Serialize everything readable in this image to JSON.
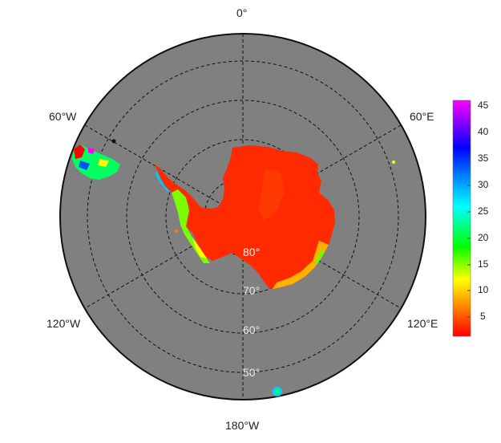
{
  "map": {
    "projection": "south-polar-stereographic",
    "background_ocean_color": "#808080",
    "land_fill_color": "#ff2a00",
    "longitude_labels": {
      "top": "0°",
      "upper_left": "60°W",
      "upper_right": "60°E",
      "lower_left": "120°W",
      "lower_right": "120°E",
      "bottom": "180°W"
    },
    "latitude_labels": [
      "80°",
      "70°",
      "60°",
      "50°"
    ]
  },
  "colorbar": {
    "ticks": [
      "45",
      "40",
      "35",
      "30",
      "25",
      "20",
      "15",
      "10",
      "5"
    ],
    "range": [
      1,
      46
    ],
    "colors": [
      "#ff0000",
      "#ff7f00",
      "#ffff00",
      "#00ff00",
      "#00ffff",
      "#0080ff",
      "#0000ff",
      "#8000ff",
      "#ff00ff"
    ]
  }
}
